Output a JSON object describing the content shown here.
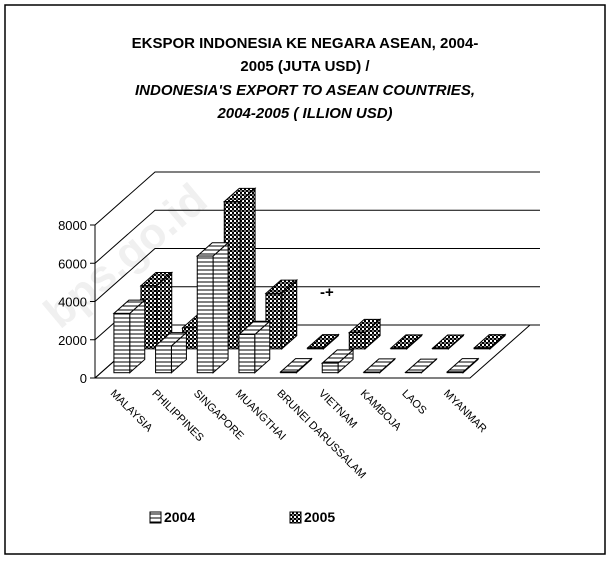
{
  "chart_data": {
    "type": "bar3d",
    "title": [
      "EKSPOR INDONESIA KE NEGARA ASEAN, 2004-",
      "2005 (JUTA USD) /"
    ],
    "subtitle": [
      "INDONESIA'S EXPORT TO ASEAN COUNTRIES,",
      "2004-2005 ( ILLION USD)"
    ],
    "categories": [
      "MALAYSIA",
      "PHILIPPINES",
      "SINGAPORE",
      "MUANGTHAI",
      "BRUNEI DARUSSALAM",
      "VIETNAM",
      "KAMBOJA",
      "LAOS",
      "MYANMAR"
    ],
    "series": [
      {
        "name": "2004",
        "color": "#ffffff",
        "values": [
          3100,
          1400,
          6100,
          2000,
          40,
          500,
          30,
          20,
          40
        ]
      },
      {
        "name": "2005",
        "color": "#7a7a7a",
        "values": [
          3300,
          1100,
          7700,
          2900,
          50,
          850,
          40,
          30,
          50
        ]
      }
    ],
    "ylim": [
      0,
      8000
    ],
    "yticks": [
      0,
      2000,
      4000,
      6000,
      8000
    ],
    "grid": true,
    "legend": "bottom",
    "annotations": [
      "-+"
    ],
    "watermark": "bps.go.id"
  }
}
